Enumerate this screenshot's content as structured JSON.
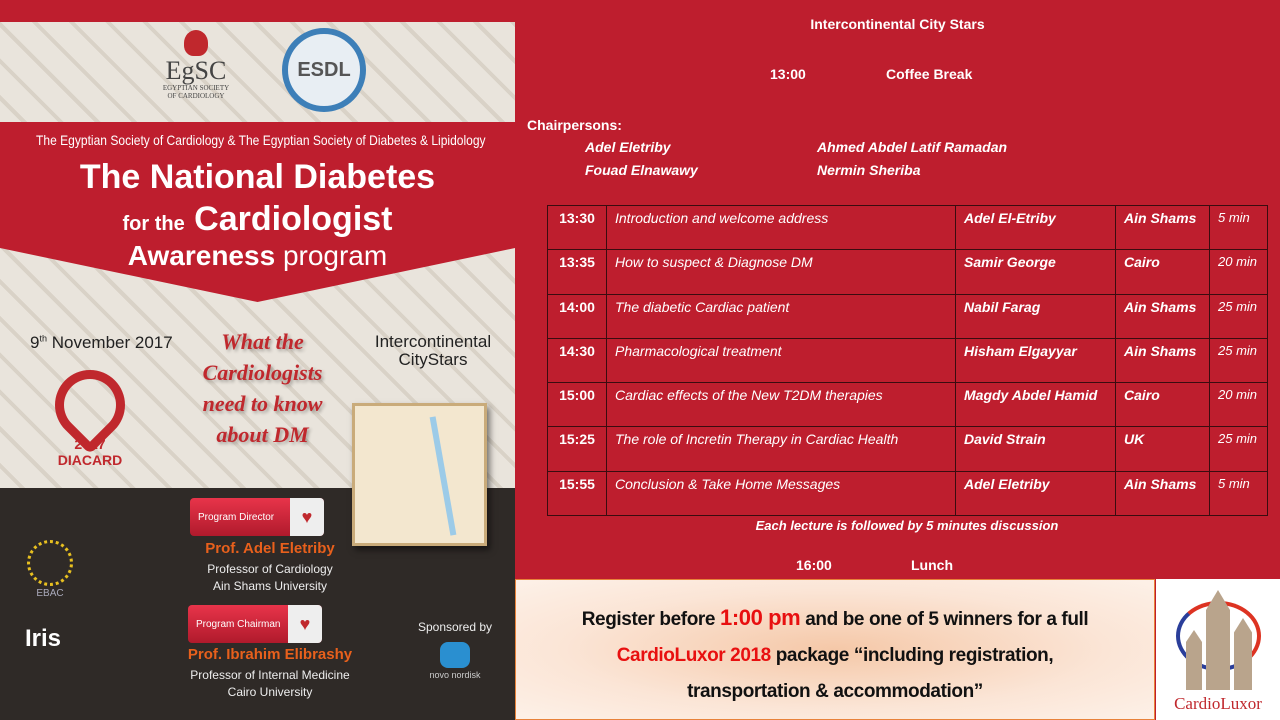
{
  "poster": {
    "logos": {
      "egsc": "EgSC",
      "egsc_sub": "EGYPTIAN SOCIETY OF CARDIOLOGY",
      "esdl": "ESDL",
      "diacard": "DIACARD",
      "diacard_year": "2017",
      "ebac": "EBAC",
      "iris": "Iris",
      "novo": "novo nordisk",
      "cardioluxor": "CardioLuxor"
    },
    "societies": "The Egyptian Society of Cardiology & The Egyptian Society of Diabetes & Lipidology",
    "title_line1": "The National Diabetes",
    "title_line2_small": "for the",
    "title_line2": "Cardiologist",
    "title_line3_bold": "Awareness",
    "title_line3": "program",
    "date_day": "9",
    "date_suffix": "th",
    "date_rest": "November 2017",
    "venue": "Intercontinental CityStars",
    "tagline": "What the Cardiologists need to know about DM",
    "director_role": "Program Director",
    "director_name": "Prof. Adel Eletriby",
    "director_title": "Professor of Cardiology",
    "director_univ": "Ain Shams University",
    "chairman_role": "Program Chairman",
    "chairman_name": "Prof. Ibrahim Elibrashy",
    "chairman_title": "Professor of Internal Medicine",
    "chairman_univ": "Cairo University",
    "sponsored_by": "Sponsored by"
  },
  "venue_header": "Intercontinental City Stars",
  "coffee": {
    "time": "13:00",
    "label": "Coffee Break"
  },
  "chairpersons_label": "Chairpersons:",
  "chairpersons": [
    "Adel Eletriby",
    "Ahmed Abdel Latif Ramadan",
    "Fouad Elnawawy",
    "Nermin Sheriba"
  ],
  "schedule": [
    {
      "time": "13:30",
      "title": "Introduction and welcome address",
      "speaker": "Adel El-Etriby",
      "affiliation": "Ain Shams",
      "duration": "5 min"
    },
    {
      "time": "13:35",
      "title": "How to suspect & Diagnose DM",
      "speaker": "Samir George",
      "affiliation": "Cairo",
      "duration": "20 min"
    },
    {
      "time": "14:00",
      "title": "The diabetic Cardiac patient",
      "speaker": "Nabil Farag",
      "affiliation": "Ain Shams",
      "duration": "25 min"
    },
    {
      "time": "14:30",
      "title": "Pharmacological treatment",
      "speaker": "Hisham Elgayyar",
      "affiliation": "Ain Shams",
      "duration": "25 min"
    },
    {
      "time": "15:00",
      "title": "Cardiac effects of the New T2DM therapies",
      "speaker": "Magdy Abdel Hamid",
      "affiliation": "Cairo",
      "duration": "20 min"
    },
    {
      "time": "15:25",
      "title": "The role of Incretin Therapy in Cardiac Health",
      "speaker": "David Strain",
      "affiliation": "UK",
      "duration": "25 min"
    },
    {
      "time": "15:55",
      "title": "Conclusion & Take Home Messages",
      "speaker": "Adel Eletriby",
      "affiliation": "Ain Shams",
      "duration": "5 min"
    }
  ],
  "note": "Each lecture is followed by 5 minutes discussion",
  "lunch": {
    "time": "16:00",
    "label": "Lunch"
  },
  "promo": {
    "p1": "Register before",
    "p1_red": "1:00 pm",
    "p1_end": "and be one of 5 winners for a full",
    "p2_red": "CardioLuxor 2018",
    "p2": "package “including registration,",
    "p3": "transportation & accommodation”"
  },
  "colors": {
    "background": "#be1e2e",
    "highlight": "#e81010",
    "name_orange": "#e8601c"
  }
}
